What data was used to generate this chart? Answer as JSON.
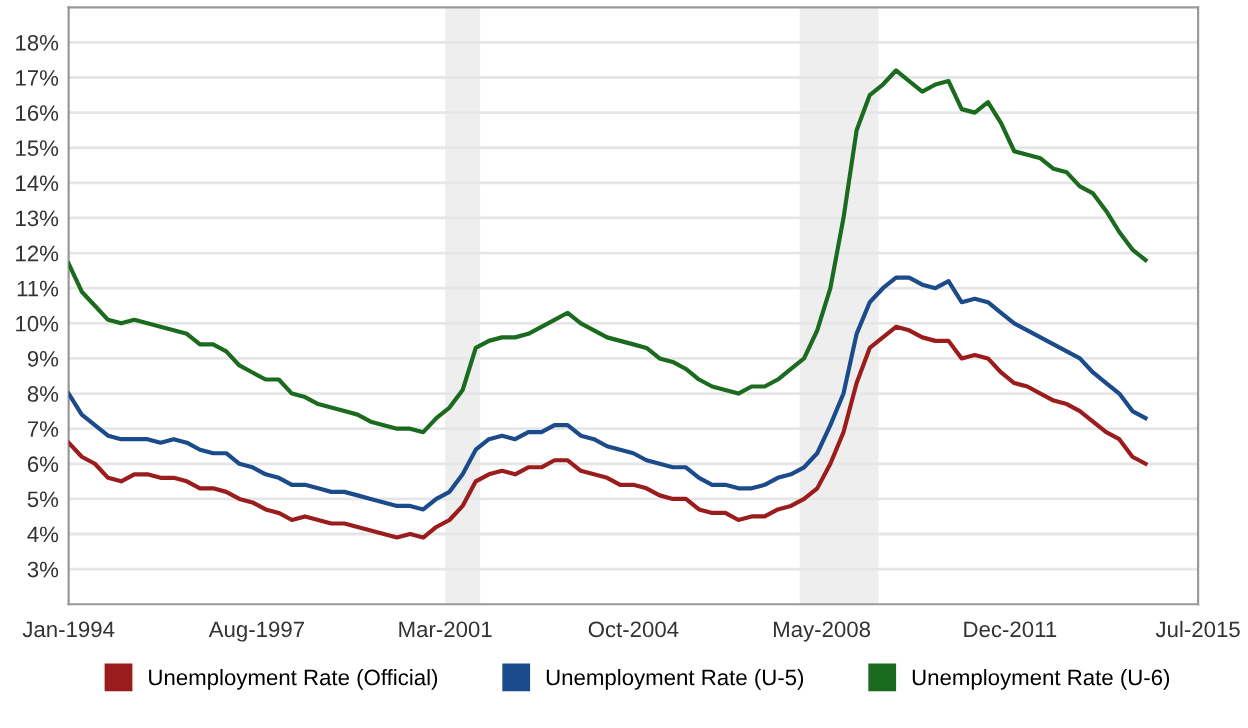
{
  "chart_data": {
    "type": "line",
    "x": [
      "1994-01",
      "1994-04",
      "1994-07",
      "1994-10",
      "1995-01",
      "1995-04",
      "1995-07",
      "1995-10",
      "1996-01",
      "1996-04",
      "1996-07",
      "1996-10",
      "1997-01",
      "1997-04",
      "1997-07",
      "1997-10",
      "1998-01",
      "1998-04",
      "1998-07",
      "1998-10",
      "1999-01",
      "1999-04",
      "1999-07",
      "1999-10",
      "2000-01",
      "2000-04",
      "2000-07",
      "2000-10",
      "2001-01",
      "2001-04",
      "2001-07",
      "2001-10",
      "2002-01",
      "2002-04",
      "2002-07",
      "2002-10",
      "2003-01",
      "2003-04",
      "2003-07",
      "2003-10",
      "2004-01",
      "2004-04",
      "2004-07",
      "2004-10",
      "2005-01",
      "2005-04",
      "2005-07",
      "2005-10",
      "2006-01",
      "2006-04",
      "2006-07",
      "2006-10",
      "2007-01",
      "2007-04",
      "2007-07",
      "2007-10",
      "2008-01",
      "2008-04",
      "2008-07",
      "2008-10",
      "2009-01",
      "2009-04",
      "2009-07",
      "2009-10",
      "2010-01",
      "2010-04",
      "2010-07",
      "2010-10",
      "2011-01",
      "2011-04",
      "2011-07",
      "2011-10",
      "2012-01",
      "2012-04",
      "2012-07",
      "2012-10",
      "2013-01",
      "2013-04",
      "2013-07",
      "2013-10",
      "2014-01",
      "2014-04",
      "2014-07"
    ],
    "series": [
      {
        "name": "Unemployment Rate (Official)",
        "color": "#9b1c1c",
        "values": [
          6.6,
          6.2,
          6.0,
          5.6,
          5.5,
          5.7,
          5.7,
          5.6,
          5.6,
          5.5,
          5.3,
          5.3,
          5.2,
          5.0,
          4.9,
          4.7,
          4.6,
          4.4,
          4.5,
          4.4,
          4.3,
          4.3,
          4.2,
          4.1,
          4.0,
          3.9,
          4.0,
          3.9,
          4.2,
          4.4,
          4.8,
          5.5,
          5.7,
          5.8,
          5.7,
          5.9,
          5.9,
          6.1,
          6.1,
          5.8,
          5.7,
          5.6,
          5.4,
          5.4,
          5.3,
          5.1,
          5.0,
          5.0,
          4.7,
          4.6,
          4.6,
          4.4,
          4.5,
          4.5,
          4.7,
          4.8,
          5.0,
          5.3,
          6.0,
          6.9,
          8.3,
          9.3,
          9.6,
          9.9,
          9.8,
          9.6,
          9.5,
          9.5,
          9.0,
          9.1,
          9.0,
          8.6,
          8.3,
          8.2,
          8.0,
          7.8,
          7.7,
          7.5,
          7.2,
          6.9,
          6.7,
          6.2,
          6.0
        ]
      },
      {
        "name": "Unemployment Rate (U-5)",
        "color": "#1b4b8a",
        "values": [
          8.0,
          7.4,
          7.1,
          6.8,
          6.7,
          6.7,
          6.7,
          6.6,
          6.7,
          6.6,
          6.4,
          6.3,
          6.3,
          6.0,
          5.9,
          5.7,
          5.6,
          5.4,
          5.4,
          5.3,
          5.2,
          5.2,
          5.1,
          5.0,
          4.9,
          4.8,
          4.8,
          4.7,
          5.0,
          5.2,
          5.7,
          6.4,
          6.7,
          6.8,
          6.7,
          6.9,
          6.9,
          7.1,
          7.1,
          6.8,
          6.7,
          6.5,
          6.4,
          6.3,
          6.1,
          6.0,
          5.9,
          5.9,
          5.6,
          5.4,
          5.4,
          5.3,
          5.3,
          5.4,
          5.6,
          5.7,
          5.9,
          6.3,
          7.1,
          8.0,
          9.7,
          10.6,
          11.0,
          11.3,
          11.3,
          11.1,
          11.0,
          11.2,
          10.6,
          10.7,
          10.6,
          10.3,
          10.0,
          9.8,
          9.6,
          9.4,
          9.2,
          9.0,
          8.6,
          8.3,
          8.0,
          7.5,
          7.3
        ]
      },
      {
        "name": "Unemployment Rate (U-6)",
        "color": "#1b6b1e",
        "values": [
          11.7,
          10.9,
          10.5,
          10.1,
          10.0,
          10.1,
          10.0,
          9.9,
          9.8,
          9.7,
          9.4,
          9.4,
          9.2,
          8.8,
          8.6,
          8.4,
          8.4,
          8.0,
          7.9,
          7.7,
          7.6,
          7.5,
          7.4,
          7.2,
          7.1,
          7.0,
          7.0,
          6.9,
          7.3,
          7.6,
          8.1,
          9.3,
          9.5,
          9.6,
          9.6,
          9.7,
          9.9,
          10.1,
          10.3,
          10.0,
          9.8,
          9.6,
          9.5,
          9.4,
          9.3,
          9.0,
          8.9,
          8.7,
          8.4,
          8.2,
          8.1,
          8.0,
          8.2,
          8.2,
          8.4,
          8.7,
          9.0,
          9.8,
          11.0,
          13.0,
          15.5,
          16.5,
          16.8,
          17.2,
          16.9,
          16.6,
          16.8,
          16.9,
          16.1,
          16.0,
          16.3,
          15.7,
          14.9,
          14.8,
          14.7,
          14.4,
          14.3,
          13.9,
          13.7,
          13.2,
          12.6,
          12.1,
          11.8
        ]
      }
    ],
    "xlim": [
      "1994-01",
      "2015-07"
    ],
    "xticks": [
      {
        "value": "1994-01",
        "label": "Jan-1994"
      },
      {
        "value": "1997-08",
        "label": "Aug-1997"
      },
      {
        "value": "2001-03",
        "label": "Mar-2001"
      },
      {
        "value": "2004-10",
        "label": "Oct-2004"
      },
      {
        "value": "2008-05",
        "label": "May-2008"
      },
      {
        "value": "2011-12",
        "label": "Dec-2011"
      },
      {
        "value": "2015-07",
        "label": "Jul-2015"
      }
    ],
    "ylim": [
      2,
      19
    ],
    "yticks": [
      {
        "value": 3,
        "label": "3%"
      },
      {
        "value": 4,
        "label": "4%"
      },
      {
        "value": 5,
        "label": "5%"
      },
      {
        "value": 6,
        "label": "6%"
      },
      {
        "value": 7,
        "label": "7%"
      },
      {
        "value": 8,
        "label": "8%"
      },
      {
        "value": 9,
        "label": "9%"
      },
      {
        "value": 10,
        "label": "10%"
      },
      {
        "value": 11,
        "label": "11%"
      },
      {
        "value": 12,
        "label": "12%"
      },
      {
        "value": 13,
        "label": "13%"
      },
      {
        "value": 14,
        "label": "14%"
      },
      {
        "value": 15,
        "label": "15%"
      },
      {
        "value": 16,
        "label": "16%"
      },
      {
        "value": 17,
        "label": "17%"
      },
      {
        "value": 18,
        "label": "18%"
      }
    ],
    "bands": [
      {
        "axis": "x",
        "from": "2001-03",
        "to": "2001-11",
        "color": "#eeeeee"
      },
      {
        "axis": "x",
        "from": "2007-12",
        "to": "2009-06",
        "color": "#eeeeee"
      }
    ],
    "grid": "y",
    "legend": "bottom",
    "marker": "none",
    "line_style": "solid"
  }
}
